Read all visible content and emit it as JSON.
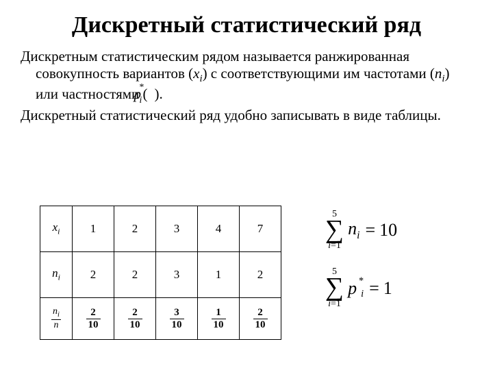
{
  "title": "Дискретный статистический ряд",
  "para1_a": "Дискретным статистическим рядом называется ранжированная совокупность вариантов (",
  "para1_x": "x",
  "para1_xi": "i",
  "para1_b": ") с соответствующими им частотами (",
  "para1_n": "n",
  "para1_ni": "i",
  "para1_c": ") или частностями (",
  "para1_p": "p",
  "para1_star": "*",
  "para1_pi": "i",
  "para1_d": ").",
  "para2": "Дискретный статистический ряд удобно записывать в виде таблицы.",
  "table": {
    "row_headers": {
      "xi_x": "x",
      "xi_i": "i",
      "ni_n": "n",
      "ni_i": "i",
      "frac_num_n": "n",
      "frac_num_i": "i",
      "frac_den": "n"
    },
    "xi": [
      "1",
      "2",
      "3",
      "4",
      "7"
    ],
    "ni": [
      "2",
      "2",
      "3",
      "1",
      "2"
    ],
    "frac_num": [
      "2",
      "2",
      "3",
      "1",
      "2"
    ],
    "frac_den": [
      "10",
      "10",
      "10",
      "10",
      "10"
    ]
  },
  "formula1": {
    "upper": "5",
    "lower_var": "i",
    "lower_eq": "=1",
    "term": "n",
    "term_sub": "i",
    "rhs": "10"
  },
  "formula2": {
    "upper": "5",
    "lower_var": "i",
    "lower_eq": "=1",
    "term": "p",
    "term_star": "*",
    "term_sub": "i",
    "rhs": "1"
  },
  "sigma_glyph": "∑",
  "eq_glyph": "="
}
